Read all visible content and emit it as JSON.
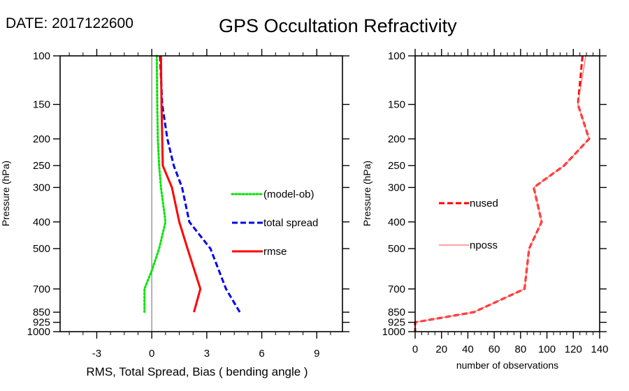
{
  "header": {
    "date_label": "DATE: 2017122600",
    "title": "GPS Occultation Refractivity"
  },
  "colors": {
    "model_ob": "#00e600",
    "total_spread": "#0000ee",
    "rmse": "#ff0000",
    "nused": "#ff0000",
    "nposs": "#ff6a6a",
    "zero_line": "#808080"
  },
  "chart_data": [
    {
      "type": "line",
      "title": "",
      "xlabel": "RMS, Total Spread, Bias ( bending angle )",
      "ylabel": "Pressure (hPa)",
      "xlim": [
        -5,
        10.4
      ],
      "ylim": [
        1000,
        100
      ],
      "yscale": "log",
      "x_ticks": [
        -3,
        0,
        3,
        6,
        9
      ],
      "x_tick_labels": [
        "-3",
        "0",
        "3",
        "6",
        "9"
      ],
      "y_ticks": [
        100,
        150,
        200,
        250,
        300,
        400,
        500,
        700,
        850,
        925,
        1000
      ],
      "y_tick_labels": [
        "100",
        "150",
        "200",
        "250",
        "300",
        "400",
        "500",
        "700",
        "850",
        "925",
        "1000"
      ],
      "grid": false,
      "reference_line_x": 0,
      "legend_position": "center-right",
      "series": [
        {
          "name": "(model-ob)",
          "style": "dotted",
          "pressure": [
            100,
            150,
            200,
            250,
            300,
            400,
            500,
            600,
            700,
            850
          ],
          "values": [
            0.27,
            0.3,
            0.33,
            0.4,
            0.5,
            0.75,
            0.4,
            0.0,
            -0.4,
            -0.4
          ]
        },
        {
          "name": "total spread",
          "style": "dashed",
          "pressure": [
            100,
            150,
            200,
            250,
            300,
            400,
            500,
            700,
            850
          ],
          "values": [
            0.45,
            0.57,
            0.85,
            1.2,
            1.65,
            2.05,
            3.2,
            4.05,
            4.8
          ]
        },
        {
          "name": "rmse",
          "style": "solid",
          "pressure": [
            100,
            150,
            200,
            250,
            300,
            400,
            500,
            700,
            850
          ],
          "values": [
            0.5,
            0.53,
            0.57,
            0.6,
            1.1,
            1.5,
            1.95,
            2.65,
            2.3
          ]
        }
      ]
    },
    {
      "type": "line",
      "title": "",
      "xlabel": "number of observations",
      "ylabel": "Pressure (hPa)",
      "xlim": [
        0,
        140
      ],
      "ylim": [
        1000,
        100
      ],
      "yscale": "log",
      "x_ticks": [
        0,
        20,
        40,
        60,
        80,
        100,
        120,
        140
      ],
      "x_tick_labels": [
        "0",
        "20",
        "40",
        "60",
        "80",
        "100",
        "120",
        "140"
      ],
      "y_ticks": [
        100,
        150,
        200,
        250,
        300,
        400,
        500,
        700,
        850,
        925,
        1000
      ],
      "y_tick_labels": [
        "100",
        "150",
        "200",
        "250",
        "300",
        "400",
        "500",
        "700",
        "850",
        "925",
        "1000"
      ],
      "grid": false,
      "legend_position": "center-left",
      "series": [
        {
          "name": "nused",
          "style": "dashed",
          "pressure": [
            100,
            150,
            200,
            250,
            300,
            400,
            500,
            700,
            850,
            925,
            1000
          ],
          "values": [
            127,
            123.5,
            132,
            113,
            90,
            96,
            86.5,
            83,
            44.5,
            0,
            0
          ]
        },
        {
          "name": "nposs",
          "style": "solid-thin",
          "pressure": [
            100,
            150,
            200,
            250,
            300,
            400,
            500,
            700,
            850,
            925,
            1000
          ],
          "values": [
            129.5,
            123.5,
            132,
            113,
            90,
            96,
            86.5,
            83,
            44.5,
            0,
            0
          ]
        }
      ]
    }
  ]
}
